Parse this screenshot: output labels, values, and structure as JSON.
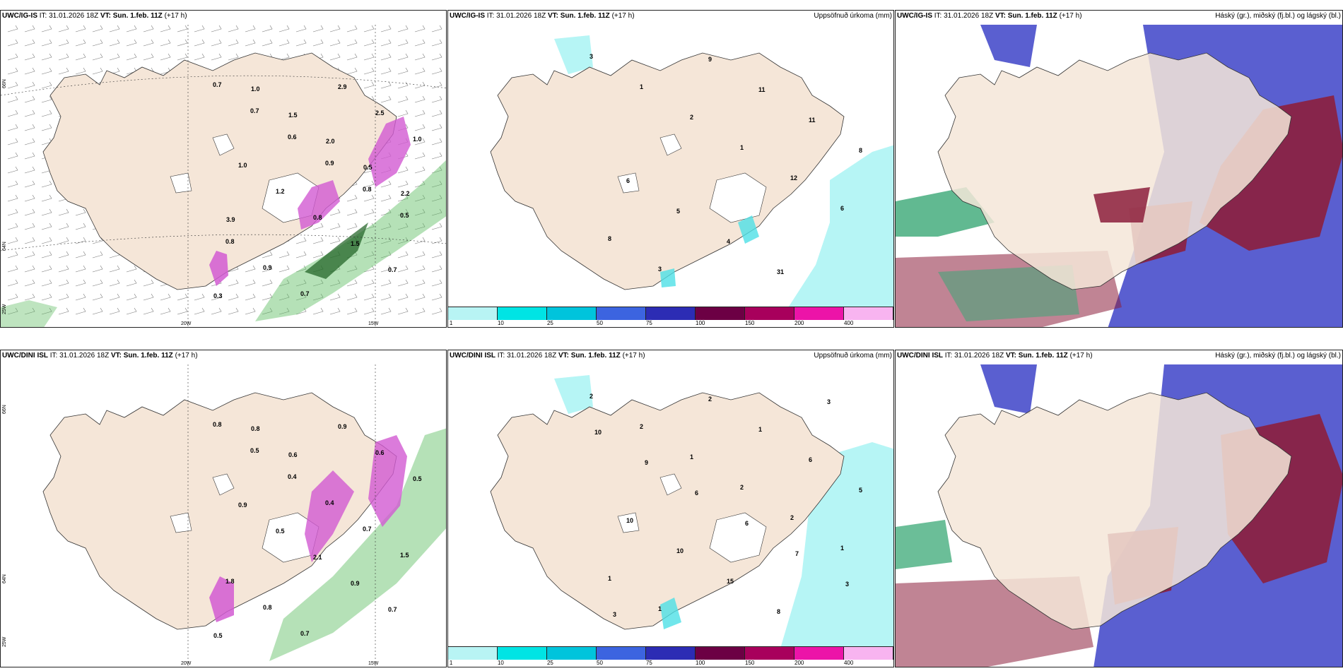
{
  "rows": [
    {
      "id": "ig",
      "wind_header": {
        "model": "UWC/IG-IS",
        "it_prefix": "IT:",
        "it": "31.01.2026 18Z",
        "vt_prefix": "VT:",
        "vt": "Sun. 1.feb. 11Z",
        "lead": "(+17 h)"
      },
      "precip_header": {
        "model": "UWC/IG-IS",
        "it_prefix": "IT:",
        "it": "31.01.2026 18Z",
        "vt_prefix": "VT:",
        "vt": "Sun. 1.feb. 11Z",
        "lead": "(+17 h)",
        "right": "Uppsöfnuð úrkoma (mm)"
      },
      "cloud_header": {
        "model": "UWC/IG-IS",
        "it_prefix": "IT:",
        "it": "31.01.2026 18Z",
        "vt_prefix": "VT:",
        "vt": "Sun. 1.feb. 11Z",
        "lead": "(+17 h)",
        "right": "Háský (gr.), miðský (fj.bl.) og lágský (bl.)"
      },
      "axis_labels": {
        "lat_top": "66N",
        "lat_mid": "64N",
        "lat_low": "25W",
        "lon_a": "20W",
        "lon_b": "15W"
      },
      "wind_values": [
        "0.7",
        "0.7",
        "0.6",
        "0.9",
        "0.8",
        "0.5",
        "0.8",
        "0.9",
        "0.7",
        "2.9",
        "2.5",
        "1.0",
        "1.0",
        "1.2",
        "0.8",
        "1.5",
        "0.7",
        "0.3",
        "1.0",
        "1.5",
        "2.0",
        "0.5",
        "2.2",
        "3.9"
      ],
      "precip_values": [
        "3",
        "1",
        "2",
        "1",
        "12",
        "6",
        "8",
        "3",
        "9",
        "11",
        "11",
        "8",
        "6",
        "5",
        "4",
        "31"
      ]
    },
    {
      "id": "dini",
      "wind_header": {
        "model": "UWC/DINI ISL",
        "it_prefix": "IT:",
        "it": "31.01.2026 18Z",
        "vt_prefix": "VT:",
        "vt": "Sun. 1.feb. 11Z",
        "lead": "(+17 h)"
      },
      "precip_header": {
        "model": "UWC/DINI ISL",
        "it_prefix": "IT:",
        "it": "31.01.2026 18Z",
        "vt_prefix": "VT:",
        "vt": "Sun. 1.feb. 11Z",
        "lead": "(+17 h)",
        "right": "Uppsöfnuð úrkoma (mm)"
      },
      "cloud_header": {
        "model": "UWC/DINI ISL",
        "it_prefix": "IT:",
        "it": "31.01.2026 18Z",
        "vt_prefix": "VT:",
        "vt": "Sun. 1.feb. 11Z",
        "lead": "(+17 h)",
        "right": "Háský (gr.), miðský (fj.bl.) og lágský (bl.)"
      },
      "axis_labels": {
        "lat_top": "66N",
        "lat_mid": "64N",
        "lat_low": "25W",
        "lon_a": "20W",
        "lon_b": "15W"
      },
      "wind_values": [
        "0.8",
        "0.5",
        "0.4",
        "0.4",
        "0.7",
        "1.5",
        "1.8",
        "0.8",
        "0.7",
        "0.9",
        "0.6",
        "0.5",
        "0.9",
        "0.5",
        "2.1",
        "0.9",
        "0.7",
        "0.5",
        "0.8",
        "0.6"
      ],
      "precip_values": [
        "2",
        "2",
        "1",
        "2",
        "2",
        "1",
        "1",
        "1",
        "2",
        "1",
        "6",
        "5",
        "10",
        "10",
        "15",
        "8",
        "3",
        "10",
        "9",
        "6",
        "6",
        "7",
        "3",
        "3"
      ]
    }
  ],
  "colorbar": {
    "labels": [
      "1",
      "10",
      "25",
      "50",
      "75",
      "100",
      "150",
      "200",
      "400"
    ],
    "colors": [
      "#b8f4f4",
      "#00e4e4",
      "#00c4dc",
      "#3c64e0",
      "#2c2cb4",
      "#6c0044",
      "#a8005c",
      "#ec14a8",
      "#f8b4f0"
    ]
  },
  "colors": {
    "land": "#f5e6d8",
    "snow": "#ffffff",
    "ocean_precip": "#b6f5f5",
    "cloud_high": "#8c1f3c",
    "cloud_mid": "#5a5fd0",
    "cloud_low": "#3aa876",
    "wind_green": "#5cbc60",
    "precip_pink": "#d25ad2"
  }
}
